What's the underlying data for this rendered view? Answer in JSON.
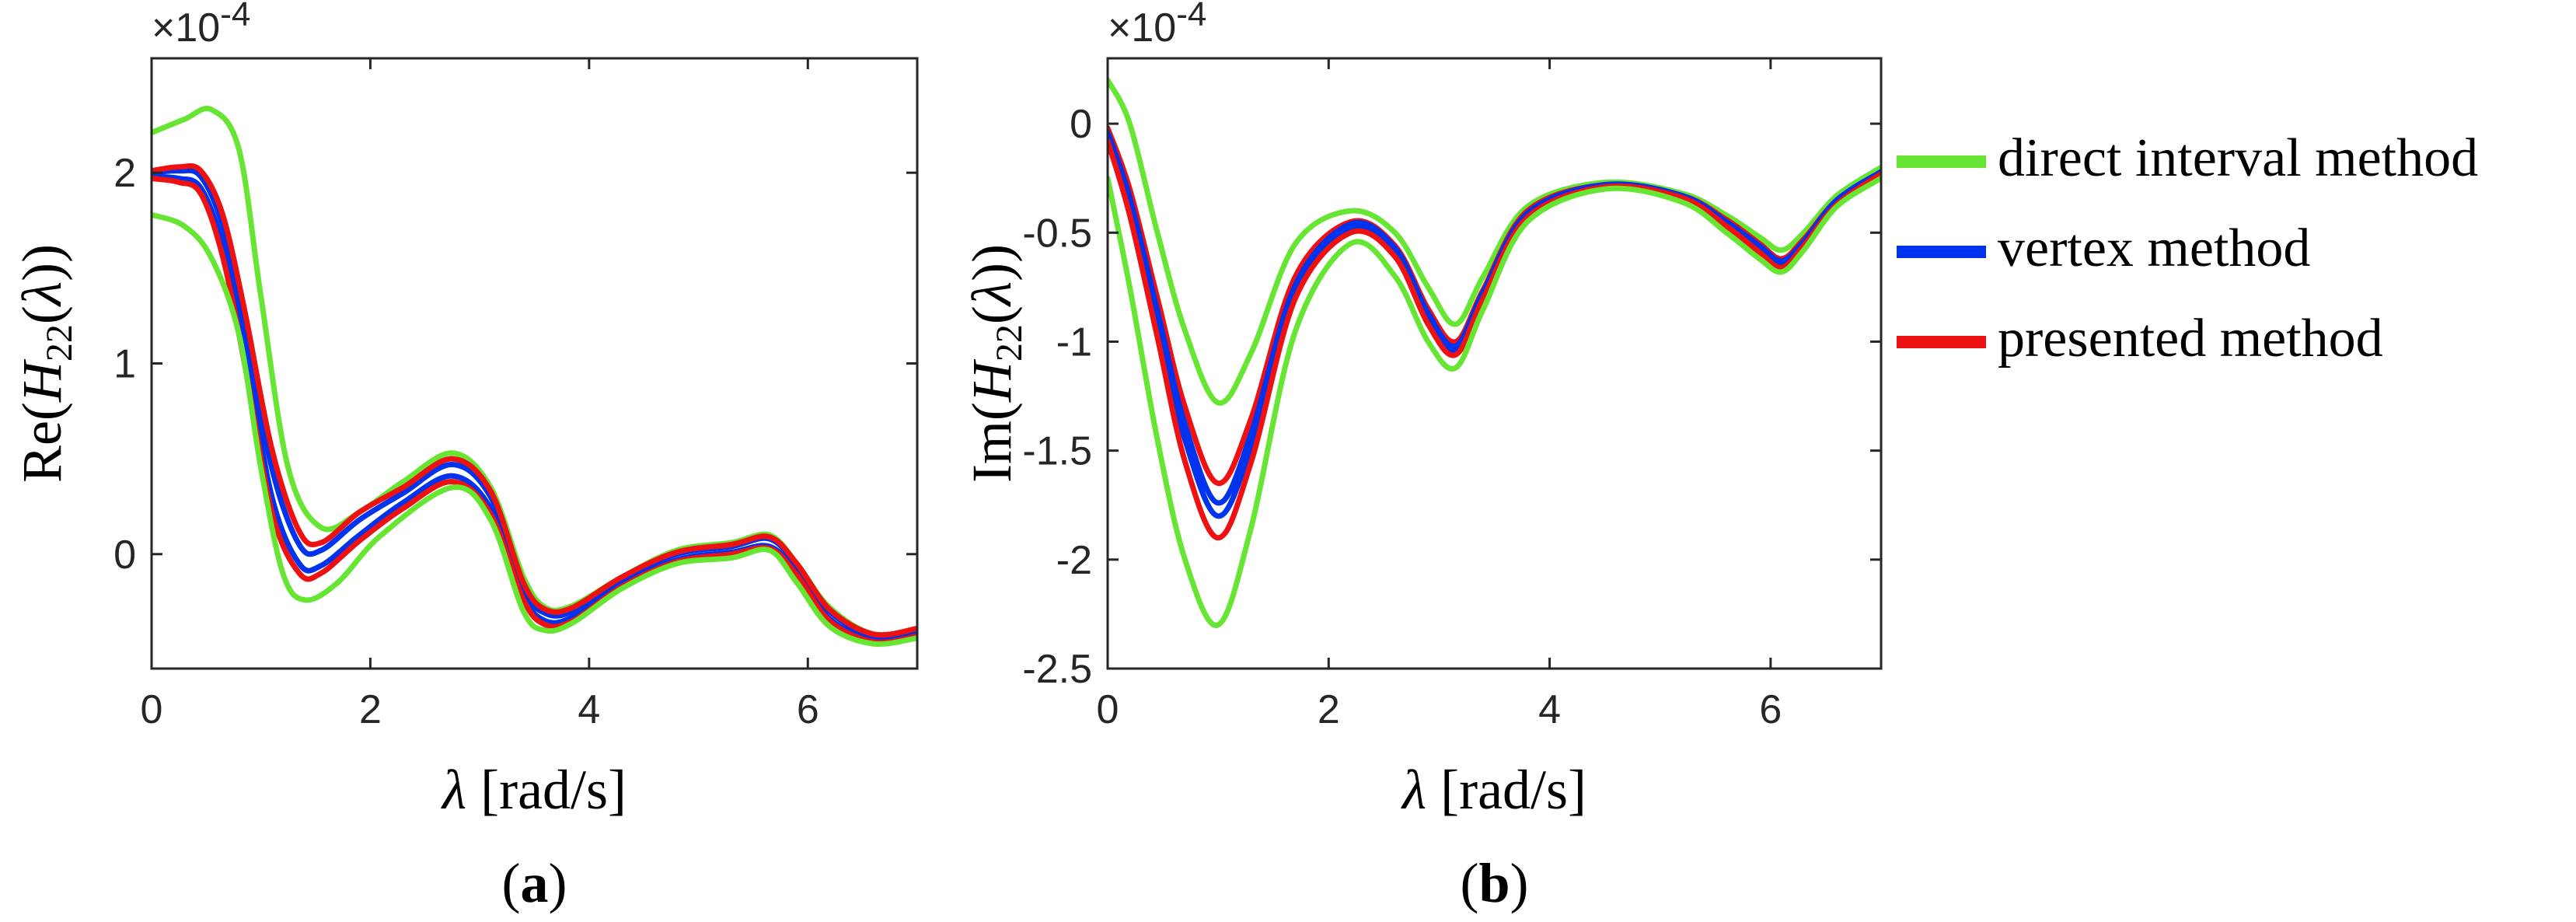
{
  "chart_data": [
    {
      "type": "line",
      "panel_label": "a",
      "title": "",
      "xlabel": "λ [rad/s]",
      "ylabel": "Re(H22(λ))",
      "ylabel_parts": {
        "prefix": "Re(",
        "var": "H",
        "sub": "22",
        "arg_open": "(",
        "arg": "λ",
        "suffix": "))"
      },
      "xlabel_parts": {
        "var": "λ",
        "unit": "[rad/s]"
      },
      "exponent_label": "×10",
      "exponent_value": "-4",
      "xlim": [
        0,
        7
      ],
      "ylim": [
        -0.6,
        2.6
      ],
      "xticks": [
        0,
        2,
        4,
        6
      ],
      "xtick_labels": [
        "0",
        "2",
        "4",
        "6"
      ],
      "yticks": [
        0,
        1,
        2
      ],
      "ytick_labels": [
        "0",
        "1",
        "2"
      ],
      "grid": false,
      "series": [
        {
          "name": "direct interval method (upper)",
          "color": "#66e633",
          "x": [
            0,
            0.3,
            0.55,
            0.8,
            1.0,
            1.25,
            1.55,
            1.9,
            2.3,
            2.75,
            3.1,
            3.4,
            3.6,
            3.85,
            4.3,
            4.8,
            5.3,
            5.65,
            5.9,
            6.2,
            6.6,
            7.0
          ],
          "y": [
            2.21,
            2.28,
            2.33,
            2.12,
            1.35,
            0.45,
            0.14,
            0.22,
            0.38,
            0.53,
            0.35,
            -0.12,
            -0.28,
            -0.27,
            -0.12,
            0.02,
            0.06,
            0.1,
            -0.05,
            -0.28,
            -0.42,
            -0.39
          ]
        },
        {
          "name": "vertex method (upper)",
          "color": "#0033ee",
          "x": [
            0,
            0.25,
            0.45,
            0.65,
            0.85,
            1.1,
            1.35,
            1.55,
            1.9,
            2.3,
            2.75,
            3.1,
            3.4,
            3.6,
            3.85,
            4.3,
            4.8,
            5.3,
            5.65,
            5.9,
            6.2,
            6.6,
            7.0
          ],
          "y": [
            2.0,
            2.01,
            1.98,
            1.72,
            1.2,
            0.45,
            0.05,
            0.02,
            0.18,
            0.32,
            0.47,
            0.3,
            -0.18,
            -0.31,
            -0.3,
            -0.13,
            0.0,
            0.04,
            0.08,
            -0.06,
            -0.3,
            -0.43,
            -0.4
          ]
        },
        {
          "name": "vertex method (lower)",
          "color": "#0033ee",
          "x": [
            0,
            0.25,
            0.45,
            0.65,
            0.85,
            1.1,
            1.35,
            1.55,
            1.9,
            2.3,
            2.75,
            3.1,
            3.4,
            3.6,
            3.85,
            4.3,
            4.8,
            5.3,
            5.65,
            5.9,
            6.2,
            6.6,
            7.0
          ],
          "y": [
            1.98,
            1.97,
            1.92,
            1.62,
            1.08,
            0.3,
            -0.05,
            -0.06,
            0.1,
            0.27,
            0.41,
            0.24,
            -0.22,
            -0.35,
            -0.33,
            -0.16,
            -0.03,
            0.01,
            0.04,
            -0.1,
            -0.34,
            -0.45,
            -0.42
          ]
        },
        {
          "name": "presented method (upper)",
          "color": "#ee1111",
          "x": [
            0,
            0.25,
            0.45,
            0.65,
            0.85,
            1.1,
            1.35,
            1.55,
            1.9,
            2.3,
            2.75,
            3.1,
            3.4,
            3.6,
            3.85,
            4.3,
            4.8,
            5.3,
            5.65,
            5.9,
            6.2,
            6.6,
            7.0
          ],
          "y": [
            2.01,
            2.03,
            2.01,
            1.78,
            1.28,
            0.55,
            0.12,
            0.06,
            0.22,
            0.35,
            0.5,
            0.33,
            -0.15,
            -0.29,
            -0.28,
            -0.12,
            0.01,
            0.05,
            0.09,
            -0.05,
            -0.29,
            -0.42,
            -0.39
          ]
        },
        {
          "name": "presented method (lower)",
          "color": "#ee1111",
          "x": [
            0,
            0.25,
            0.45,
            0.65,
            0.85,
            1.1,
            1.35,
            1.55,
            1.9,
            2.3,
            2.75,
            3.1,
            3.4,
            3.6,
            3.85,
            4.3,
            4.8,
            5.3,
            5.65,
            5.9,
            6.2,
            6.6,
            7.0
          ],
          "y": [
            1.97,
            1.95,
            1.89,
            1.56,
            1.0,
            0.22,
            -0.1,
            -0.1,
            0.07,
            0.24,
            0.38,
            0.21,
            -0.24,
            -0.37,
            -0.35,
            -0.17,
            -0.04,
            0.0,
            0.03,
            -0.11,
            -0.35,
            -0.46,
            -0.43
          ]
        },
        {
          "name": "direct interval method (lower)",
          "color": "#66e633",
          "x": [
            0,
            0.3,
            0.55,
            0.8,
            1.0,
            1.2,
            1.4,
            1.7,
            2.1,
            2.75,
            3.1,
            3.4,
            3.6,
            3.85,
            4.3,
            4.8,
            5.3,
            5.65,
            5.9,
            6.2,
            6.6,
            7.0
          ],
          "y": [
            1.78,
            1.72,
            1.55,
            1.15,
            0.45,
            -0.1,
            -0.24,
            -0.15,
            0.1,
            0.35,
            0.18,
            -0.3,
            -0.4,
            -0.36,
            -0.18,
            -0.05,
            -0.02,
            0.02,
            -0.15,
            -0.38,
            -0.47,
            -0.44
          ]
        }
      ]
    },
    {
      "type": "line",
      "panel_label": "b",
      "title": "",
      "xlabel": "λ [rad/s]",
      "ylabel": "Im(H22(λ))",
      "ylabel_parts": {
        "prefix": "Im(",
        "var": "H",
        "sub": "22",
        "arg_open": "(",
        "arg": "λ",
        "suffix": "))"
      },
      "xlabel_parts": {
        "var": "λ",
        "unit": "[rad/s]"
      },
      "exponent_label": "×10",
      "exponent_value": "-4",
      "xlim": [
        0,
        7
      ],
      "ylim": [
        -2.5,
        0.3
      ],
      "xticks": [
        0,
        2,
        4,
        6
      ],
      "xtick_labels": [
        "0",
        "2",
        "4",
        "6"
      ],
      "yticks": [
        0,
        -0.5,
        -1,
        -1.5,
        -2,
        -2.5
      ],
      "ytick_labels": [
        "0",
        "-0.5",
        "-1",
        "-1.5",
        "-2",
        "-2.5"
      ],
      "grid": false,
      "series": [
        {
          "name": "direct interval method (upper)",
          "color": "#66e633",
          "x": [
            0,
            0.2,
            0.45,
            0.7,
            1.0,
            1.3,
            1.7,
            2.2,
            2.6,
            2.9,
            3.15,
            3.4,
            3.8,
            4.5,
            5.2,
            5.6,
            5.9,
            6.1,
            6.3,
            6.6,
            7.0
          ],
          "y": [
            0.2,
            0.0,
            -0.5,
            -0.95,
            -1.28,
            -1.05,
            -0.55,
            -0.4,
            -0.5,
            -0.75,
            -0.92,
            -0.7,
            -0.38,
            -0.27,
            -0.32,
            -0.42,
            -0.52,
            -0.58,
            -0.5,
            -0.33,
            -0.2
          ]
        },
        {
          "name": "presented method (upper)",
          "color": "#ee1111",
          "x": [
            0,
            0.2,
            0.45,
            0.7,
            1.0,
            1.3,
            1.7,
            2.2,
            2.6,
            2.9,
            3.15,
            3.4,
            3.8,
            4.5,
            5.2,
            5.6,
            5.9,
            6.1,
            6.3,
            6.6,
            7.0
          ],
          "y": [
            -0.02,
            -0.3,
            -0.8,
            -1.3,
            -1.65,
            -1.35,
            -0.7,
            -0.45,
            -0.56,
            -0.85,
            -1.0,
            -0.76,
            -0.4,
            -0.28,
            -0.33,
            -0.44,
            -0.55,
            -0.62,
            -0.53,
            -0.35,
            -0.22
          ]
        },
        {
          "name": "vertex method (upper)",
          "color": "#0033ee",
          "x": [
            0,
            0.2,
            0.45,
            0.7,
            1.0,
            1.3,
            1.7,
            2.2,
            2.6,
            2.9,
            3.15,
            3.4,
            3.8,
            4.5,
            5.2,
            5.6,
            5.9,
            6.1,
            6.3,
            6.6,
            7.0
          ],
          "y": [
            -0.04,
            -0.34,
            -0.86,
            -1.38,
            -1.74,
            -1.42,
            -0.74,
            -0.46,
            -0.57,
            -0.87,
            -1.02,
            -0.77,
            -0.41,
            -0.28,
            -0.33,
            -0.45,
            -0.56,
            -0.63,
            -0.54,
            -0.35,
            -0.22
          ]
        },
        {
          "name": "vertex method (lower)",
          "color": "#0033ee",
          "x": [
            0,
            0.2,
            0.45,
            0.7,
            1.0,
            1.3,
            1.7,
            2.2,
            2.6,
            2.9,
            3.15,
            3.4,
            3.8,
            4.5,
            5.2,
            5.6,
            5.9,
            6.1,
            6.3,
            6.6,
            7.0
          ],
          "y": [
            -0.06,
            -0.38,
            -0.92,
            -1.45,
            -1.8,
            -1.48,
            -0.77,
            -0.48,
            -0.59,
            -0.89,
            -1.04,
            -0.79,
            -0.42,
            -0.29,
            -0.34,
            -0.46,
            -0.58,
            -0.65,
            -0.55,
            -0.36,
            -0.23
          ]
        },
        {
          "name": "presented method (lower)",
          "color": "#ee1111",
          "x": [
            0,
            0.2,
            0.45,
            0.7,
            1.0,
            1.3,
            1.7,
            2.2,
            2.6,
            2.9,
            3.15,
            3.4,
            3.8,
            4.5,
            5.2,
            5.6,
            5.9,
            6.1,
            6.3,
            6.6,
            7.0
          ],
          "y": [
            -0.08,
            -0.42,
            -0.98,
            -1.55,
            -1.9,
            -1.55,
            -0.8,
            -0.5,
            -0.61,
            -0.92,
            -1.06,
            -0.8,
            -0.43,
            -0.29,
            -0.34,
            -0.47,
            -0.59,
            -0.66,
            -0.56,
            -0.37,
            -0.23
          ]
        },
        {
          "name": "direct interval method (lower)",
          "color": "#66e633",
          "x": [
            0,
            0.2,
            0.45,
            0.7,
            1.0,
            1.3,
            1.7,
            2.2,
            2.6,
            2.9,
            3.15,
            3.4,
            3.8,
            4.5,
            5.2,
            5.6,
            5.9,
            6.1,
            6.3,
            6.6,
            7.0
          ],
          "y": [
            -0.25,
            -0.75,
            -1.45,
            -2.0,
            -2.3,
            -1.85,
            -0.95,
            -0.55,
            -0.7,
            -1.0,
            -1.12,
            -0.85,
            -0.45,
            -0.3,
            -0.36,
            -0.5,
            -0.62,
            -0.68,
            -0.58,
            -0.38,
            -0.25
          ]
        }
      ]
    }
  ],
  "legend": {
    "placement": "right",
    "entries": [
      {
        "label": "direct interval method",
        "color": "#66e633"
      },
      {
        "label": "vertex method",
        "color": "#0033ee"
      },
      {
        "label": "presented method",
        "color": "#ee1111"
      }
    ]
  }
}
